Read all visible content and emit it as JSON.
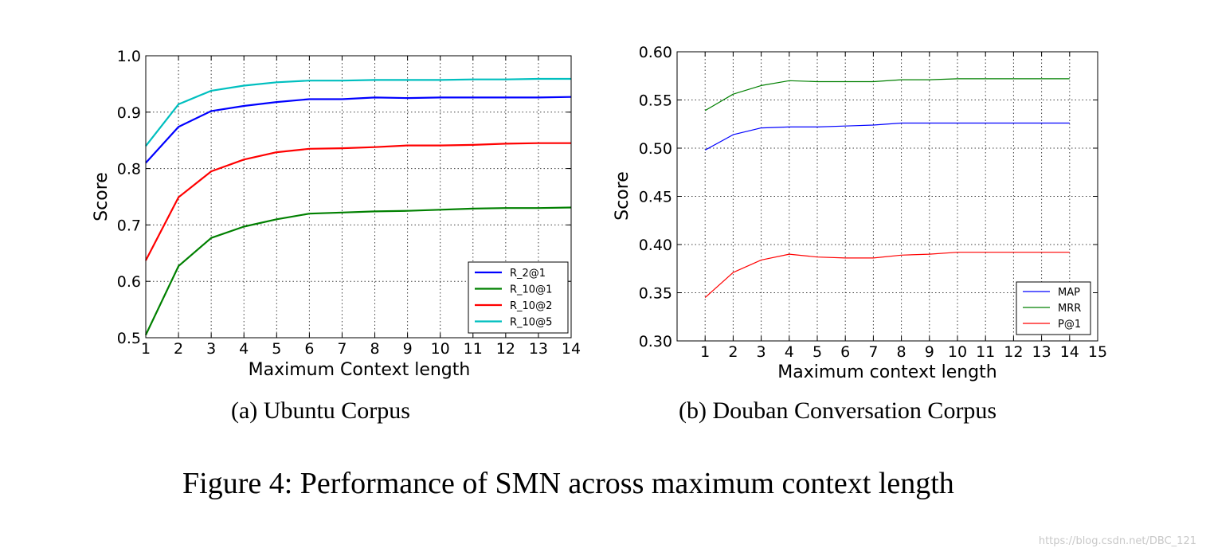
{
  "chart_data": [
    {
      "type": "line",
      "id": "a",
      "title": "",
      "xlabel": "Maximum Context length",
      "ylabel": "Score",
      "xlim": [
        1,
        14
      ],
      "ylim": [
        0.5,
        1.0
      ],
      "xticks": [
        1,
        2,
        3,
        4,
        5,
        6,
        7,
        8,
        9,
        10,
        11,
        12,
        13,
        14
      ],
      "yticks": [
        0.5,
        0.6,
        0.7,
        0.8,
        0.9,
        1.0
      ],
      "ytick_labels": [
        "0.5",
        "0.6",
        "0.7",
        "0.8",
        "0.9",
        "1.0"
      ],
      "grid": true,
      "legend": "lower-right",
      "x": [
        1,
        2,
        3,
        4,
        5,
        6,
        7,
        8,
        9,
        10,
        11,
        12,
        13,
        14
      ],
      "series": [
        {
          "name": "R_2@1",
          "color": "#0000ff",
          "values": [
            0.81,
            0.874,
            0.902,
            0.911,
            0.918,
            0.923,
            0.923,
            0.926,
            0.925,
            0.926,
            0.926,
            0.926,
            0.926,
            0.927
          ]
        },
        {
          "name": "R_10@1",
          "color": "#008000",
          "values": [
            0.505,
            0.627,
            0.677,
            0.697,
            0.71,
            0.72,
            0.722,
            0.724,
            0.725,
            0.727,
            0.729,
            0.73,
            0.73,
            0.731
          ]
        },
        {
          "name": "R_10@2",
          "color": "#ff0000",
          "values": [
            0.637,
            0.749,
            0.795,
            0.816,
            0.829,
            0.835,
            0.836,
            0.838,
            0.841,
            0.841,
            0.842,
            0.844,
            0.845,
            0.845
          ]
        },
        {
          "name": "R_10@5",
          "color": "#00bfbf",
          "values": [
            0.84,
            0.914,
            0.938,
            0.947,
            0.953,
            0.956,
            0.956,
            0.957,
            0.957,
            0.957,
            0.958,
            0.958,
            0.959,
            0.959
          ]
        }
      ]
    },
    {
      "type": "line",
      "id": "b",
      "title": "",
      "xlabel": "Maximum context length",
      "ylabel": "Score",
      "xlim": [
        0,
        15
      ],
      "ylim": [
        0.3,
        0.6
      ],
      "xticks": [
        1,
        2,
        3,
        4,
        5,
        6,
        7,
        8,
        9,
        10,
        11,
        12,
        13,
        14,
        15
      ],
      "yticks": [
        0.3,
        0.35,
        0.4,
        0.45,
        0.5,
        0.55,
        0.6
      ],
      "ytick_labels": [
        "0.30",
        "0.35",
        "0.40",
        "0.45",
        "0.50",
        "0.55",
        "0.60"
      ],
      "grid": true,
      "legend": "lower-right",
      "x": [
        1,
        2,
        3,
        4,
        5,
        6,
        7,
        8,
        9,
        10,
        11,
        12,
        13,
        14
      ],
      "series": [
        {
          "name": "MAP",
          "color": "#0000ff",
          "values": [
            0.498,
            0.514,
            0.521,
            0.522,
            0.522,
            0.523,
            0.524,
            0.526,
            0.526,
            0.526,
            0.526,
            0.526,
            0.526,
            0.526
          ]
        },
        {
          "name": "MRR",
          "color": "#008000",
          "values": [
            0.539,
            0.556,
            0.565,
            0.57,
            0.569,
            0.569,
            0.569,
            0.571,
            0.571,
            0.572,
            0.572,
            0.572,
            0.572,
            0.572
          ]
        },
        {
          "name": "P@1",
          "color": "#ff0000",
          "values": [
            0.345,
            0.371,
            0.384,
            0.39,
            0.387,
            0.386,
            0.386,
            0.389,
            0.39,
            0.392,
            0.392,
            0.392,
            0.392,
            0.392
          ]
        }
      ]
    }
  ],
  "captions": {
    "sub_a": "(a)  Ubuntu Corpus",
    "sub_b": "(b)  Douban Conversation Corpus",
    "figure": "Figure 4: Performance of SMN across maximum context length"
  },
  "watermark": "https://blog.csdn.net/DBC_121"
}
